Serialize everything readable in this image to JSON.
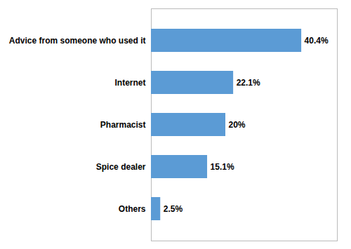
{
  "chart_data": {
    "type": "bar",
    "orientation": "horizontal",
    "categories": [
      "Advice from someone who used it",
      "Internet",
      "Pharmacist",
      "Spice dealer",
      "Others"
    ],
    "values": [
      40.4,
      22.1,
      20.0,
      15.1,
      2.5
    ],
    "value_labels": [
      "40.4%",
      "22.1%",
      "20%",
      "15.1%",
      "2.5%"
    ],
    "color": "#5B9BD5",
    "xlim": [
      0,
      50
    ],
    "data_labels": true,
    "tick_labels": "y",
    "grid": false
  }
}
